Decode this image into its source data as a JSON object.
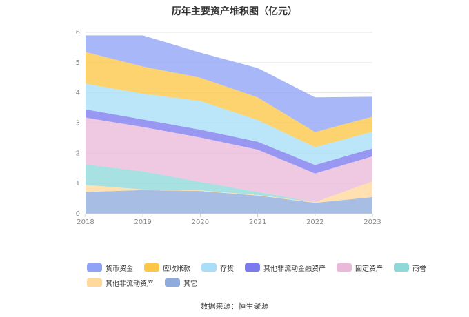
{
  "title": "历年主要资产堆积图（亿元）",
  "source": "数据来源：恒生聚源",
  "chart_data": {
    "type": "area",
    "stacked": true,
    "categories": [
      "2018",
      "2019",
      "2020",
      "2021",
      "2022",
      "2023"
    ],
    "ylim": [
      0,
      6
    ],
    "yticks": [
      0,
      1,
      2,
      3,
      4,
      5,
      6
    ],
    "grid": true,
    "legend_position": "bottom",
    "series": [
      {
        "name": "其它",
        "color": "#8FAADC",
        "values": [
          0.72,
          0.78,
          0.75,
          0.6,
          0.36,
          0.55
        ]
      },
      {
        "name": "其他非流动资产",
        "color": "#FFD99B",
        "values": [
          0.23,
          0.02,
          0.02,
          0.02,
          0.02,
          0.52
        ]
      },
      {
        "name": "商誉",
        "color": "#8ED8DA",
        "values": [
          0.68,
          0.6,
          0.28,
          0.1,
          0.0,
          0.0
        ]
      },
      {
        "name": "固定资产",
        "color": "#EAB8D8",
        "values": [
          1.55,
          1.47,
          1.47,
          1.4,
          0.95,
          0.83
        ]
      },
      {
        "name": "其他非流动金融资产",
        "color": "#7B7BEF",
        "values": [
          0.27,
          0.25,
          0.26,
          0.26,
          0.28,
          0.26
        ]
      },
      {
        "name": "存货",
        "color": "#A8DEF7",
        "values": [
          0.85,
          0.85,
          0.95,
          0.72,
          0.59,
          0.55
        ]
      },
      {
        "name": "应收账款",
        "color": "#FCC647",
        "values": [
          1.05,
          0.9,
          0.77,
          0.75,
          0.5,
          0.5
        ]
      },
      {
        "name": "货币资金",
        "color": "#8FA3F6",
        "values": [
          0.55,
          1.03,
          0.83,
          0.97,
          1.15,
          0.66
        ]
      }
    ]
  },
  "legend": {
    "rows": [
      [
        "货币资金",
        "应收账款",
        "存货",
        "其他非流动金融资产",
        "固定资产",
        "商誉"
      ],
      [
        "其他非流动资产",
        "其它"
      ]
    ]
  }
}
